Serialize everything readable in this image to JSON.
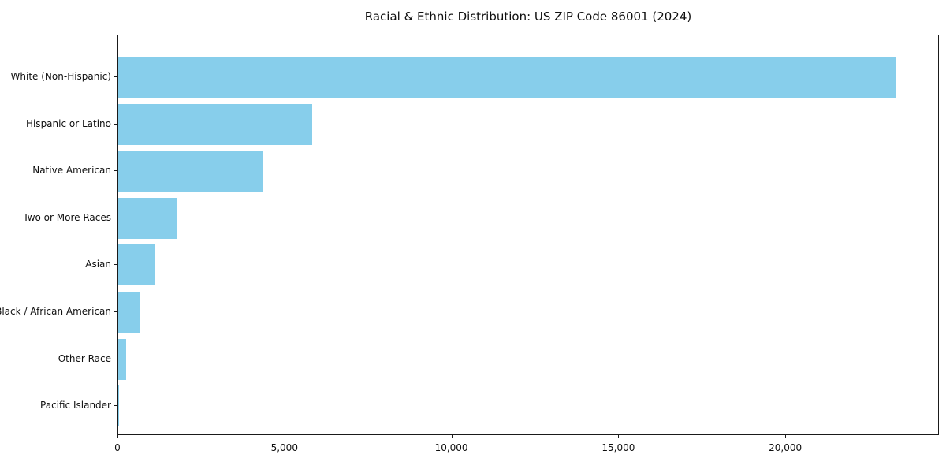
{
  "chart_data": {
    "type": "bar",
    "orientation": "horizontal",
    "title": "Racial & Ethnic Distribution: US ZIP Code 86001 (2024)",
    "categories": [
      "White (Non-Hispanic)",
      "Hispanic or Latino",
      "Native American",
      "Two or More Races",
      "Asian",
      "Black / African American",
      "Other Race",
      "Pacific Islander"
    ],
    "values": [
      23300,
      5800,
      4350,
      1760,
      1100,
      660,
      230,
      30
    ],
    "xlabel": "",
    "ylabel": "",
    "xlim": [
      0,
      24600
    ],
    "x_ticks": [
      0,
      5000,
      10000,
      15000,
      20000
    ],
    "x_tick_labels": [
      "0",
      "5,000",
      "10,000",
      "15,000",
      "20,000"
    ],
    "bar_color": "#87CEEB",
    "grid": false,
    "legend": null
  }
}
